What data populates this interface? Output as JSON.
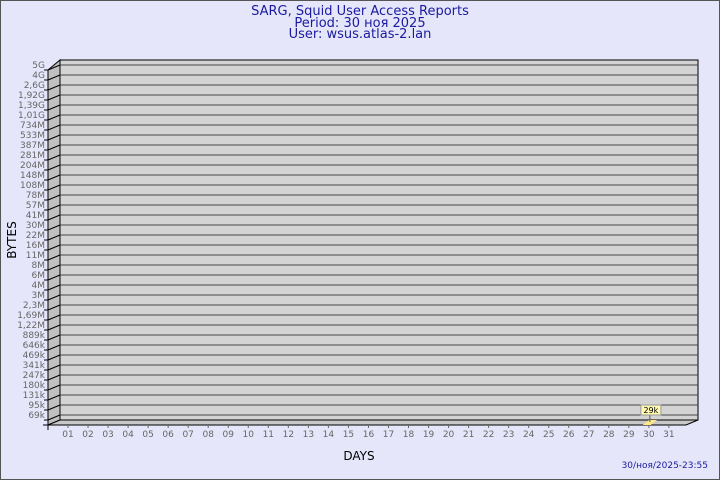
{
  "header": {
    "title": "SARG, Squid User Access Reports",
    "period": "Period: 30 ноя 2025",
    "user": "User: wsus.atlas-2.lan"
  },
  "generated": "30/ноя/2025-23:55",
  "colors": {
    "title": "#1a1aa0",
    "background": "#e6e6fa",
    "plot": "#d3d3d3",
    "bar": "#ffe88a"
  },
  "chart_data": {
    "type": "bar",
    "xlabel": "DAYS",
    "ylabel": "BYTES",
    "y_scale": "log",
    "grid": true,
    "y_ticks": [
      "5G",
      "4G",
      "2,6G",
      "1,92G",
      "1,39G",
      "1,01G",
      "734M",
      "533M",
      "387M",
      "281M",
      "204M",
      "148M",
      "108M",
      "78M",
      "57M",
      "41M",
      "30M",
      "22M",
      "16M",
      "11M",
      "8M",
      "6M",
      "4M",
      "3M",
      "2,3M",
      "1,69M",
      "1,22M",
      "889k",
      "646k",
      "469k",
      "341k",
      "247k",
      "180k",
      "131k",
      "95k",
      "69k"
    ],
    "categories": [
      "01",
      "02",
      "03",
      "04",
      "05",
      "06",
      "07",
      "08",
      "09",
      "10",
      "11",
      "12",
      "13",
      "14",
      "15",
      "16",
      "17",
      "18",
      "19",
      "20",
      "21",
      "22",
      "23",
      "24",
      "25",
      "26",
      "27",
      "28",
      "29",
      "30",
      "31"
    ],
    "bars": [
      {
        "day": "30",
        "value": "29k"
      }
    ]
  }
}
